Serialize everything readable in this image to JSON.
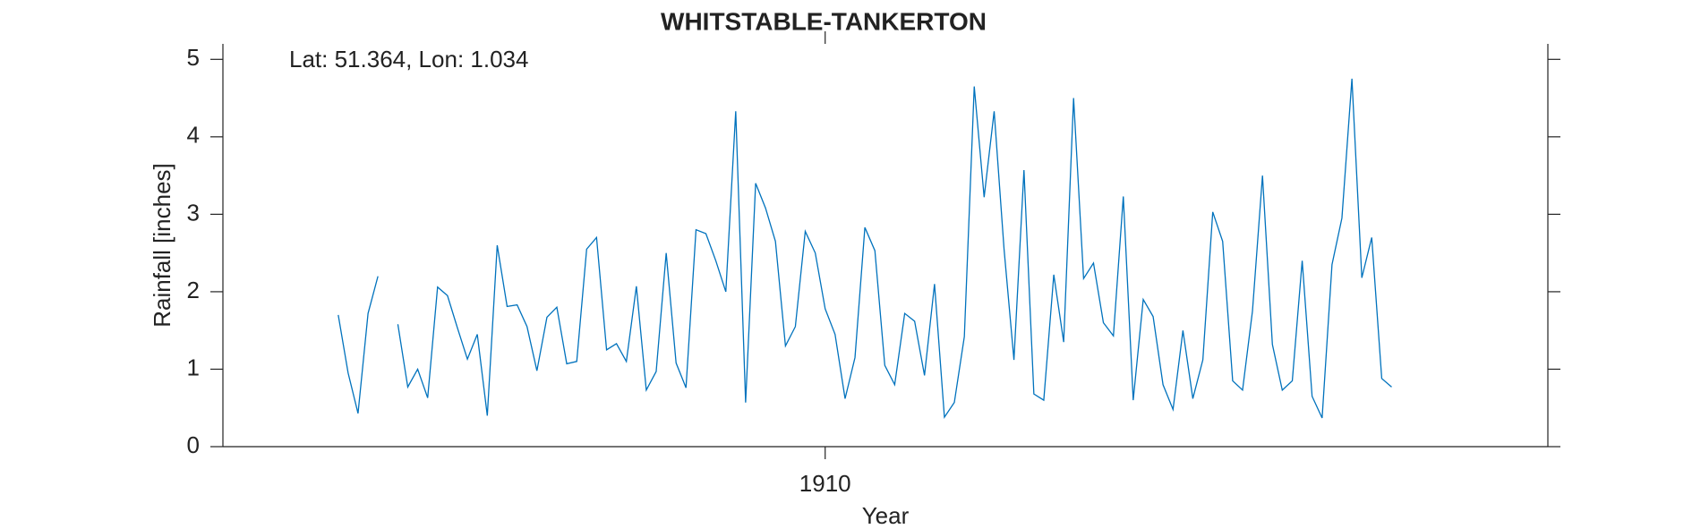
{
  "chart_data": {
    "type": "line",
    "title": "WHITSTABLE-TANKERTON",
    "annotation": "Lat: 51.364, Lon: 1.034",
    "xlabel": "Year",
    "ylabel": "Rainfall [inches]",
    "xlim": [
      1904.95,
      1916.06
    ],
    "xticks": [
      1910
    ],
    "ylim": [
      0,
      5.2
    ],
    "yticks": [
      0,
      1,
      2,
      3,
      4,
      5
    ],
    "grid": false,
    "series": [
      {
        "name": "Rainfall",
        "color": "#0072bd",
        "x": [
          1905.917,
          1906.0,
          1906.083,
          1906.167,
          1906.25,
          1906.333,
          1906.417,
          1906.5,
          1906.583,
          1906.667,
          1906.75,
          1906.833,
          1906.917,
          1907.0,
          1907.083,
          1907.167,
          1907.25,
          1907.333,
          1907.417,
          1907.5,
          1907.583,
          1907.667,
          1907.75,
          1907.833,
          1907.917,
          1908.0,
          1908.083,
          1908.167,
          1908.25,
          1908.333,
          1908.417,
          1908.5,
          1908.583,
          1908.667,
          1908.75,
          1908.833,
          1908.917,
          1909.0,
          1909.083,
          1909.167,
          1909.25,
          1909.333,
          1909.417,
          1909.5,
          1909.583,
          1909.667,
          1909.75,
          1909.833,
          1909.917,
          1910.0,
          1910.083,
          1910.167,
          1910.25,
          1910.333,
          1910.417,
          1910.5,
          1910.583,
          1910.667,
          1910.75,
          1910.833,
          1910.917,
          1911.0,
          1911.083,
          1911.167,
          1911.25,
          1911.333,
          1911.417,
          1911.5,
          1911.583,
          1911.667,
          1911.75,
          1911.833,
          1911.917,
          1912.0,
          1912.083,
          1912.167,
          1912.25,
          1912.333,
          1912.417,
          1912.5,
          1912.583,
          1912.667,
          1912.75,
          1912.833,
          1912.917,
          1913.0,
          1913.083,
          1913.167,
          1913.25,
          1913.333,
          1913.417,
          1913.5,
          1913.583,
          1913.667,
          1913.75,
          1913.833,
          1913.917,
          1914.0,
          1914.083,
          1914.167,
          1914.25,
          1914.333,
          1914.417,
          1914.5,
          1914.583,
          1914.667,
          1914.75
        ],
        "values": [
          1.7,
          0.95,
          0.43,
          1.72,
          2.2,
          null,
          1.58,
          0.77,
          1.0,
          0.63,
          2.06,
          1.95,
          1.53,
          1.13,
          1.45,
          0.4,
          2.6,
          1.81,
          1.83,
          1.55,
          0.98,
          1.67,
          1.8,
          1.07,
          1.1,
          2.55,
          2.7,
          1.25,
          1.33,
          1.1,
          2.07,
          0.73,
          0.97,
          2.5,
          1.08,
          0.76,
          2.8,
          2.75,
          2.4,
          2.0,
          4.33,
          0.57,
          3.4,
          3.08,
          2.65,
          1.3,
          1.55,
          2.78,
          2.5,
          1.78,
          1.45,
          0.62,
          1.15,
          2.83,
          2.53,
          1.05,
          0.8,
          1.72,
          1.62,
          0.92,
          2.1,
          0.38,
          0.57,
          1.42,
          4.65,
          3.22,
          4.33,
          2.55,
          1.12,
          3.57,
          0.68,
          0.6,
          2.22,
          1.35,
          4.5,
          2.17,
          2.37,
          1.6,
          1.43,
          3.23,
          0.6,
          1.9,
          1.68,
          0.8,
          0.48,
          1.5,
          0.62,
          1.12,
          3.03,
          2.65,
          0.85,
          0.73,
          1.75,
          3.5,
          1.32,
          0.73,
          0.85,
          2.4,
          0.65,
          0.37,
          2.35,
          2.95,
          4.75,
          2.18,
          2.7,
          0.88,
          0.77
        ]
      }
    ]
  }
}
